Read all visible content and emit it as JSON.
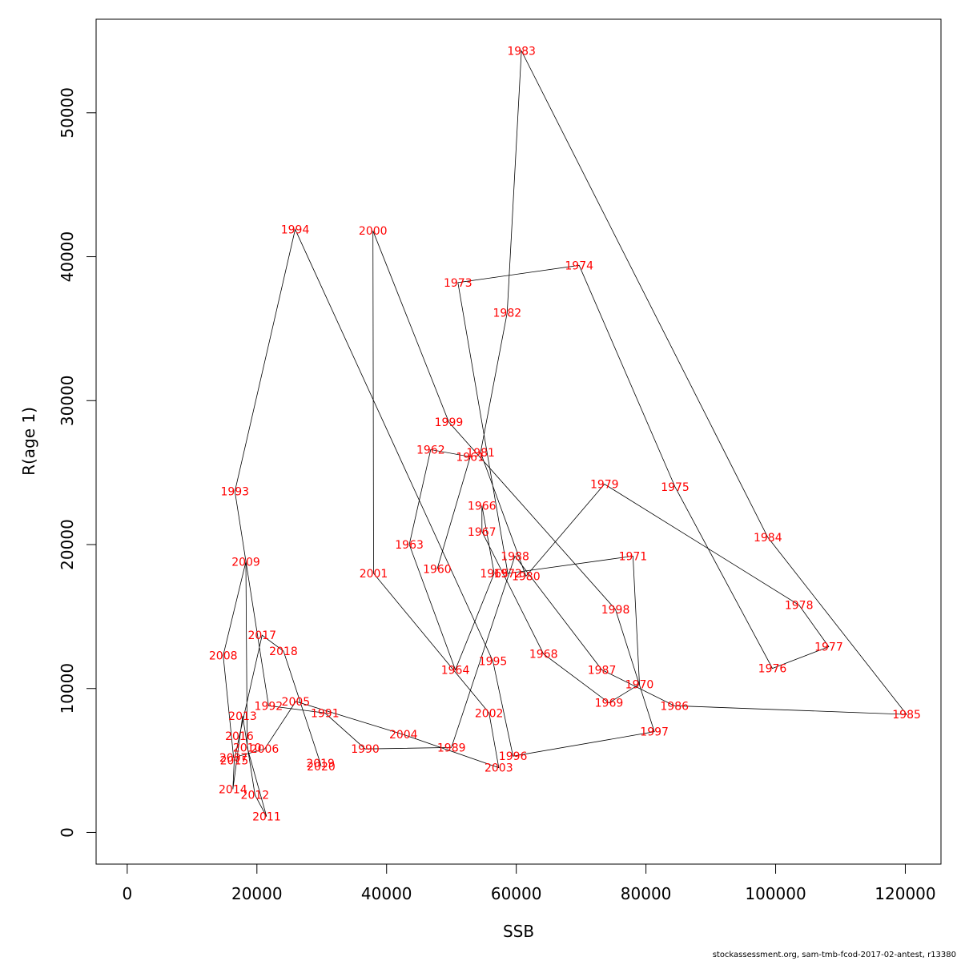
{
  "chart_data": {
    "type": "scatter",
    "connected": true,
    "title": "",
    "xlabel": "SSB",
    "ylabel": "R(age 1)",
    "xlim": [
      -4800,
      125500
    ],
    "ylim": [
      -2200,
      56500
    ],
    "xticks": [
      0,
      20000,
      40000,
      60000,
      80000,
      100000,
      120000
    ],
    "yticks": [
      0,
      10000,
      20000,
      30000,
      40000,
      50000
    ],
    "label_color": "#ff0000",
    "line_color": "#000000",
    "points": [
      {
        "year": "1960",
        "ssb": 47800,
        "r": 18300
      },
      {
        "year": "1961",
        "ssb": 52900,
        "r": 26100
      },
      {
        "year": "1962",
        "ssb": 46800,
        "r": 26600
      },
      {
        "year": "1963",
        "ssb": 43500,
        "r": 20000
      },
      {
        "year": "1964",
        "ssb": 50600,
        "r": 11300
      },
      {
        "year": "1965",
        "ssb": 56600,
        "r": 18000
      },
      {
        "year": "1966",
        "ssb": 54700,
        "r": 22700
      },
      {
        "year": "1967",
        "ssb": 54700,
        "r": 20900
      },
      {
        "year": "1968",
        "ssb": 64200,
        "r": 12400
      },
      {
        "year": "1969",
        "ssb": 74300,
        "r": 9000
      },
      {
        "year": "1970",
        "ssb": 79000,
        "r": 10300
      },
      {
        "year": "1971",
        "ssb": 78000,
        "r": 19200
      },
      {
        "year": "1972",
        "ssb": 58700,
        "r": 18000
      },
      {
        "year": "1973",
        "ssb": 51000,
        "r": 38200
      },
      {
        "year": "1974",
        "ssb": 69700,
        "r": 39400
      },
      {
        "year": "1975",
        "ssb": 84500,
        "r": 24000
      },
      {
        "year": "1976",
        "ssb": 99500,
        "r": 11400
      },
      {
        "year": "1977",
        "ssb": 108200,
        "r": 12900
      },
      {
        "year": "1978",
        "ssb": 103600,
        "r": 15800
      },
      {
        "year": "1979",
        "ssb": 73600,
        "r": 24200
      },
      {
        "year": "1980",
        "ssb": 61500,
        "r": 17800
      },
      {
        "year": "1981",
        "ssb": 54500,
        "r": 26400
      },
      {
        "year": "1982",
        "ssb": 58600,
        "r": 36100
      },
      {
        "year": "1983",
        "ssb": 60800,
        "r": 54300
      },
      {
        "year": "1984",
        "ssb": 98800,
        "r": 20500
      },
      {
        "year": "1985",
        "ssb": 120200,
        "r": 8200
      },
      {
        "year": "1986",
        "ssb": 84400,
        "r": 8800
      },
      {
        "year": "1987",
        "ssb": 73200,
        "r": 11300
      },
      {
        "year": "1988",
        "ssb": 59800,
        "r": 19200
      },
      {
        "year": "1989",
        "ssb": 50000,
        "r": 5900
      },
      {
        "year": "1990",
        "ssb": 36700,
        "r": 5800
      },
      {
        "year": "1991",
        "ssb": 30500,
        "r": 8300
      },
      {
        "year": "1992",
        "ssb": 21800,
        "r": 8800
      },
      {
        "year": "1993",
        "ssb": 16600,
        "r": 23700
      },
      {
        "year": "1994",
        "ssb": 25900,
        "r": 41900
      },
      {
        "year": "1995",
        "ssb": 56400,
        "r": 11900
      },
      {
        "year": "1996",
        "ssb": 59500,
        "r": 5300
      },
      {
        "year": "1997",
        "ssb": 81300,
        "r": 7000
      },
      {
        "year": "1998",
        "ssb": 75300,
        "r": 15500
      },
      {
        "year": "1999",
        "ssb": 49600,
        "r": 28500
      },
      {
        "year": "2000",
        "ssb": 37900,
        "r": 41800
      },
      {
        "year": "2001",
        "ssb": 38000,
        "r": 18000
      },
      {
        "year": "2002",
        "ssb": 55800,
        "r": 8300
      },
      {
        "year": "2003",
        "ssb": 57300,
        "r": 4500
      },
      {
        "year": "2004",
        "ssb": 42600,
        "r": 6800
      },
      {
        "year": "2005",
        "ssb": 26000,
        "r": 9100
      },
      {
        "year": "2006",
        "ssb": 21200,
        "r": 5800
      },
      {
        "year": "2007",
        "ssb": 16400,
        "r": 5200
      },
      {
        "year": "2008",
        "ssb": 14800,
        "r": 12300
      },
      {
        "year": "2009",
        "ssb": 18300,
        "r": 18800
      },
      {
        "year": "2010",
        "ssb": 18500,
        "r": 5900
      },
      {
        "year": "2011",
        "ssb": 21500,
        "r": 1100
      },
      {
        "year": "2012",
        "ssb": 19700,
        "r": 2600
      },
      {
        "year": "2013",
        "ssb": 17800,
        "r": 8100
      },
      {
        "year": "2014",
        "ssb": 16300,
        "r": 3000
      },
      {
        "year": "2015",
        "ssb": 16500,
        "r": 5000
      },
      {
        "year": "2016",
        "ssb": 17300,
        "r": 6700
      },
      {
        "year": "2017",
        "ssb": 20800,
        "r": 13700
      },
      {
        "year": "2018",
        "ssb": 24100,
        "r": 12600
      },
      {
        "year": "2019",
        "ssb": 29800,
        "r": 4800
      },
      {
        "year": "2020",
        "ssb": 29900,
        "r": 4600
      }
    ]
  },
  "footer": "stockassessment.org, sam-tmb-fcod-2017-02-antest, r13380"
}
